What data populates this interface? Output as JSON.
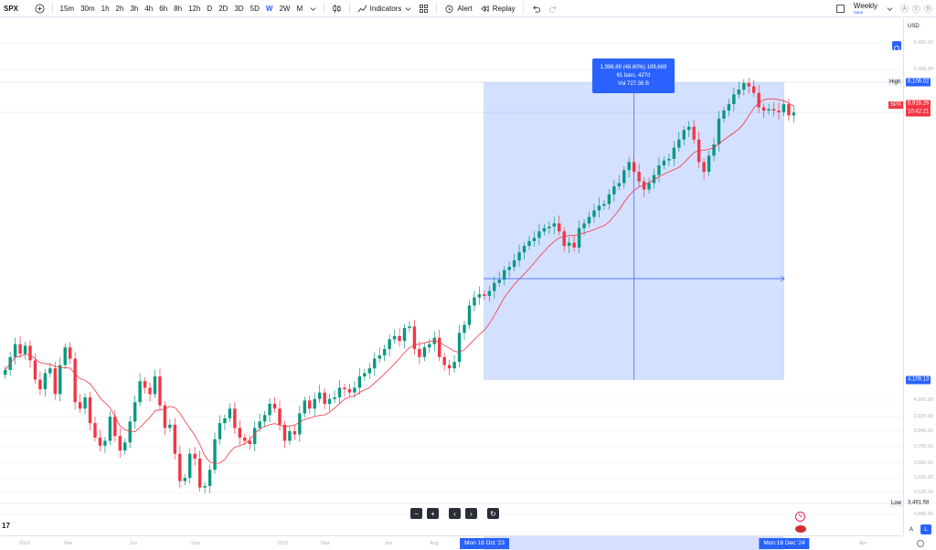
{
  "toolbar": {
    "symbol": "SPX",
    "timeframes": [
      "15m",
      "30m",
      "1h",
      "2h",
      "3h",
      "4h",
      "6h",
      "8h",
      "12h",
      "D",
      "2D",
      "3D",
      "5D",
      "W",
      "2W",
      "M"
    ],
    "active_timeframe": "W",
    "indicators_label": "Indicators",
    "alert_label": "Alert",
    "replay_label": "Replay",
    "layout_name": "Weekly",
    "layout_status": "Save",
    "circle_buttons": [
      "A",
      "C",
      "B"
    ]
  },
  "chart_data": {
    "type": "candlestick",
    "symbol": "SPX",
    "interval": "Weekly",
    "currency": "USD",
    "last_price": "5,918.26",
    "countdown": "10:42:21",
    "high": "6,106.02",
    "low": "3,491.58",
    "range_low_label": "4,109.13",
    "measure": {
      "line1": "1,996.89 (48.60%) 199,689",
      "line2": "61 bars, 427d",
      "line3": "Vol 727.36 B",
      "start": "Mon 16 Oct '23",
      "end": "Mon 16 Dec '24"
    },
    "price_ticks": [
      "6,400.00",
      "6,300.00",
      "4,000.00",
      "3,920.00",
      "3,840.00",
      "3,760.00",
      "3,680.00",
      "3,600.00",
      "3,520.00",
      "3,440.00"
    ],
    "time_ticks": [
      "2022",
      "Mar",
      "Jun",
      "Sep",
      "2023",
      "Mar",
      "Jun",
      "Aug",
      "Apr"
    ],
    "ma_color": "#f23645",
    "up_color": "#089981",
    "down_color": "#f23645",
    "weekly_closes": [
      4320,
      4400,
      4480,
      4420,
      4470,
      4380,
      4260,
      4200,
      4300,
      4330,
      4170,
      4350,
      4460,
      4390,
      4120,
      4080,
      4150,
      3990,
      3900,
      3850,
      3880,
      4030,
      3910,
      3820,
      3870,
      4000,
      4120,
      4250,
      4210,
      4170,
      4280,
      4100,
      3960,
      3980,
      3800,
      3630,
      3650,
      3800,
      3770,
      3590,
      3600,
      3700,
      3890,
      3990,
      4020,
      4080,
      3960,
      3900,
      3880,
      3860,
      3960,
      4000,
      4040,
      4110,
      4080,
      3980,
      3880,
      3940,
      3920,
      4050,
      4130,
      4080,
      4140,
      4180,
      4110,
      4140,
      4150,
      4210,
      4200,
      4180,
      4210,
      4280,
      4300,
      4330,
      4390,
      4410,
      4450,
      4510,
      4530,
      4500,
      4580,
      4590,
      4450,
      4400,
      4460,
      4480,
      4520,
      4400,
      4350,
      4330,
      4370,
      4550,
      4600,
      4720,
      4770,
      4790,
      4780,
      4810,
      4860,
      4880,
      4940,
      4960,
      5000,
      5050,
      5090,
      5120,
      5140,
      5180,
      5200,
      5210,
      5230,
      5180,
      5090,
      5110,
      5080,
      5200,
      5230,
      5270,
      5310,
      5340,
      5350,
      5410,
      5460,
      5480,
      5560,
      5610,
      5550,
      5490,
      5440,
      5480,
      5530,
      5590,
      5620,
      5630,
      5700,
      5750,
      5810,
      5830,
      5750,
      5610,
      5550,
      5650,
      5720,
      5880,
      5930,
      5970,
      6030,
      6060,
      6100,
      6080,
      6040,
      5950,
      5930,
      5940,
      5930,
      5920,
      5970,
      5900,
      5918
    ]
  },
  "nav_buttons": {
    "zoom_out": "−",
    "zoom_in": "+",
    "scroll_left": "‹",
    "scroll_right": "›",
    "reset": "↻"
  },
  "axis_labels": {
    "high_tag": "High",
    "low_tag": "Low",
    "symbol_tag": "SPX",
    "auto_scale": "L",
    "log_scale": "A"
  },
  "brand_logo": "17"
}
